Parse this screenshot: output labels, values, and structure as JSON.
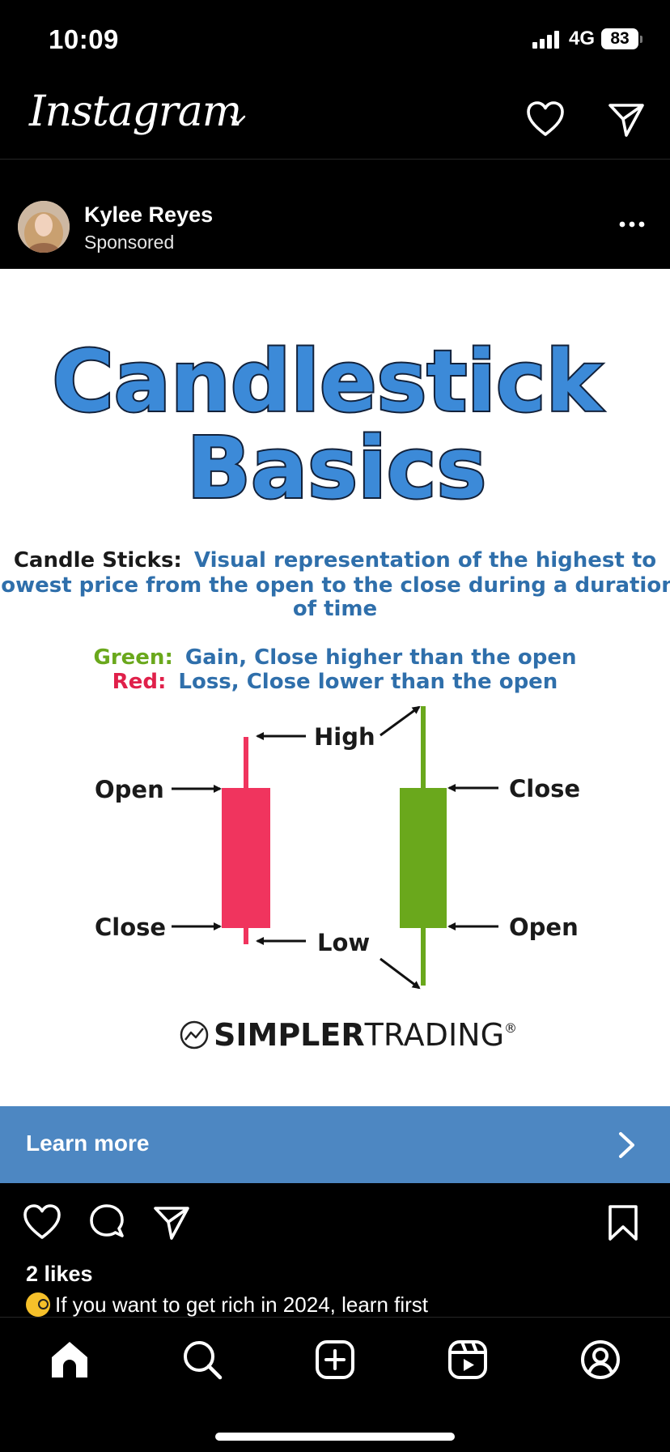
{
  "status_bar": {
    "time": "10:09",
    "network": "4G",
    "battery": "83"
  },
  "top_nav": {
    "brand": "Instagram"
  },
  "post": {
    "author": "Kylee Reyes",
    "subtitle": "Sponsored",
    "image": {
      "title_line1": "Candlestick",
      "title_line2": "Basics",
      "definition_term": "Candle Sticks:",
      "definition_line1": "Visual representation of the highest to",
      "definition_line2": "lowest price from the open to the close during a duration",
      "definition_line3": "of time",
      "green_term": "Green:",
      "green_text": "Gain, Close higher than the open",
      "red_term": "Red:",
      "red_text": "Loss, Close lower than the open",
      "label_high": "High",
      "label_low": "Low",
      "label_open_left": "Open",
      "label_close_left": "Close",
      "label_close_right": "Close",
      "label_open_right": "Open",
      "logo_bold": "SIMPLER",
      "logo_light": "TRADING",
      "logo_mark": "®"
    },
    "cta_label": "Learn more",
    "likes": "2 likes",
    "caption": "If you want to get rich in 2024, learn first"
  },
  "icons": {
    "nav": [
      "heart-icon",
      "direct-message-icon",
      "chevron-down-icon"
    ],
    "actions": [
      "like-icon",
      "comment-icon",
      "share-icon",
      "bookmark-icon"
    ],
    "tabs": [
      "home-icon",
      "search-icon",
      "create-icon",
      "reels-icon",
      "profile-icon"
    ]
  },
  "colors": {
    "background": "#000000",
    "cta": "#4d87c2",
    "title_blue": "#3c8ad8",
    "definition_blue": "#2f6fab",
    "green": "#6aa81c",
    "red": "#f0345e"
  }
}
